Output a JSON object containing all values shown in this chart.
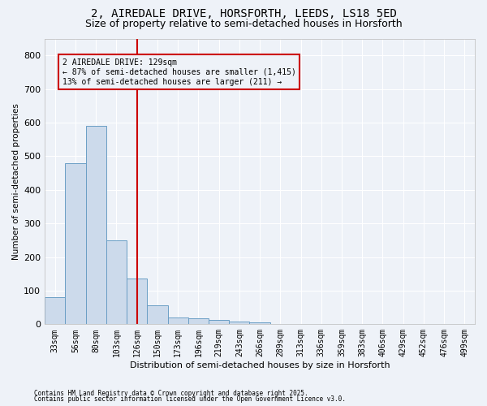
{
  "title1": "2, AIREDALE DRIVE, HORSFORTH, LEEDS, LS18 5ED",
  "title2": "Size of property relative to semi-detached houses in Horsforth",
  "xlabel": "Distribution of semi-detached houses by size in Horsforth",
  "ylabel": "Number of semi-detached properties",
  "footnote1": "Contains HM Land Registry data © Crown copyright and database right 2025.",
  "footnote2": "Contains public sector information licensed under the Open Government Licence v3.0.",
  "categories": [
    "33sqm",
    "56sqm",
    "80sqm",
    "103sqm",
    "126sqm",
    "150sqm",
    "173sqm",
    "196sqm",
    "219sqm",
    "243sqm",
    "266sqm",
    "289sqm",
    "313sqm",
    "336sqm",
    "359sqm",
    "383sqm",
    "406sqm",
    "429sqm",
    "452sqm",
    "476sqm",
    "499sqm"
  ],
  "values": [
    80,
    480,
    590,
    250,
    135,
    57,
    20,
    17,
    13,
    7,
    5,
    0,
    0,
    0,
    0,
    0,
    0,
    0,
    0,
    0,
    0
  ],
  "bar_color": "#ccdaeb",
  "bar_edge_color": "#6a9ec5",
  "vline_x": 4.0,
  "vline_color": "#cc0000",
  "annotation_line1": "2 AIREDALE DRIVE: 129sqm",
  "annotation_line2": "← 87% of semi-detached houses are smaller (1,415)",
  "annotation_line3": "13% of semi-detached houses are larger (211) →",
  "annotation_box_color": "#cc0000",
  "ylim": [
    0,
    850
  ],
  "yticks": [
    0,
    100,
    200,
    300,
    400,
    500,
    600,
    700,
    800
  ],
  "background_color": "#eef2f8",
  "grid_color": "#ffffff",
  "title_fontsize": 10,
  "subtitle_fontsize": 9
}
